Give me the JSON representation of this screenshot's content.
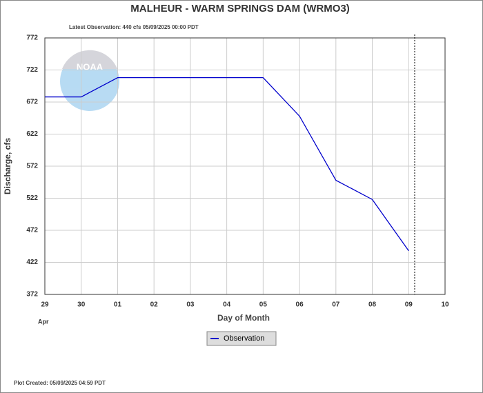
{
  "chart_data": {
    "type": "line",
    "title": "MALHEUR - WARM SPRINGS DAM  (WRMO3)",
    "subtitle": "Latest Observation: 440 cfs 05/09/2025 00:00 PDT",
    "x_label": "Day of Month",
    "x_sublabel": "Apr",
    "y_label": "Discharge, cfs",
    "footer": "Plot Created: 05/09/2025 04:59 PDT",
    "logo_text": "NOAA",
    "categories": [
      "29",
      "30",
      "01",
      "02",
      "03",
      "04",
      "05",
      "06",
      "07",
      "08",
      "09",
      "10"
    ],
    "series": [
      {
        "name": "Observation",
        "color": "#0000cc",
        "values": [
          680,
          680,
          710,
          710,
          710,
          710,
          710,
          650,
          550,
          520,
          440,
          null
        ]
      }
    ],
    "ylim": [
      372,
      772
    ],
    "yticks": [
      372,
      422,
      472,
      522,
      572,
      622,
      672,
      722,
      772
    ],
    "grid": true
  }
}
